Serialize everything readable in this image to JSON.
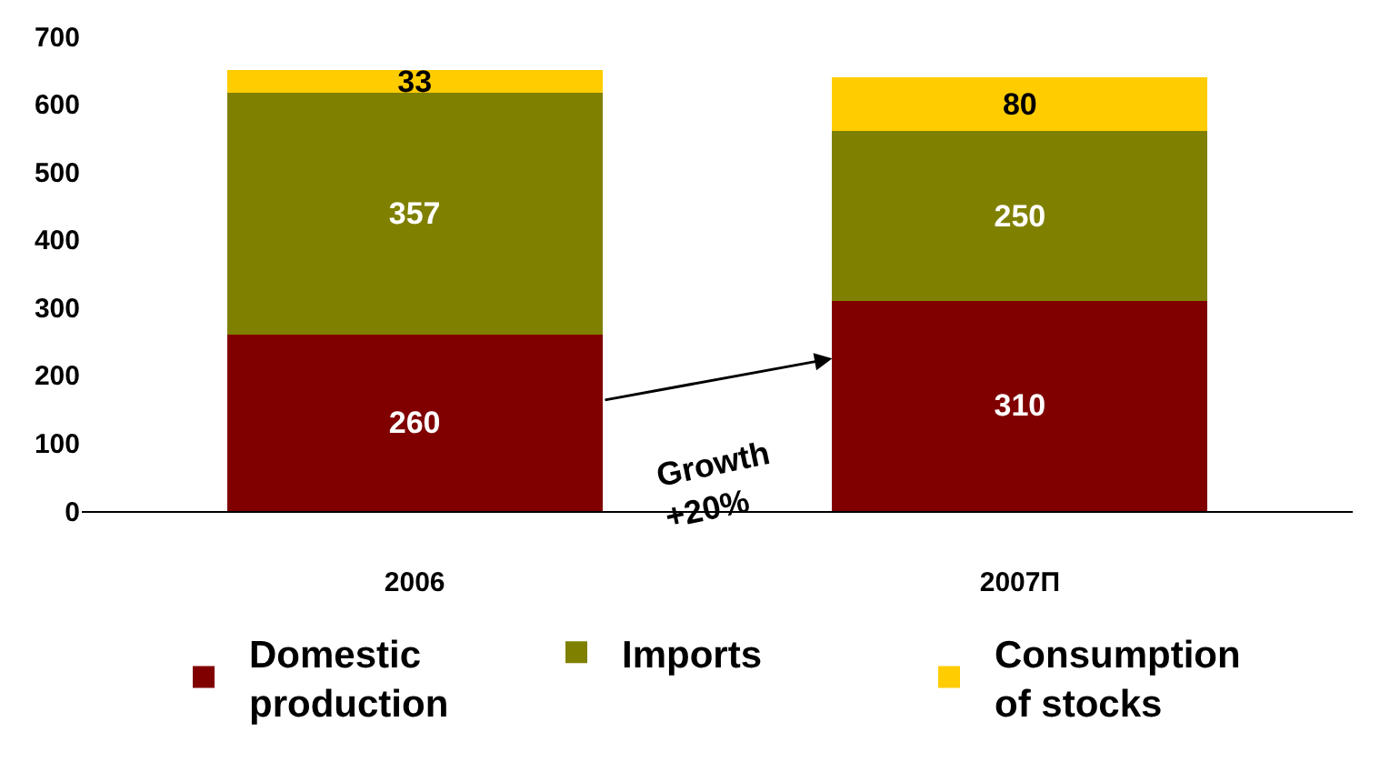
{
  "chart_data": {
    "type": "bar",
    "stacked": true,
    "categories": [
      "2006",
      "2007П"
    ],
    "series": [
      {
        "name": "Domestic\nproduction",
        "color": "#800000",
        "values": [
          260,
          310
        ]
      },
      {
        "name": "Imports",
        "color": "#808000",
        "values": [
          357,
          250
        ]
      },
      {
        "name": "Consumption\nof stocks",
        "color": "#ffcc00",
        "values": [
          33,
          80
        ]
      }
    ],
    "ylim": [
      0,
      700
    ],
    "yticks": [
      0,
      100,
      200,
      300,
      400,
      500,
      600,
      700
    ],
    "data_labels": true,
    "legend": "bottom",
    "annotations": [
      "Growth\n+20%"
    ]
  }
}
